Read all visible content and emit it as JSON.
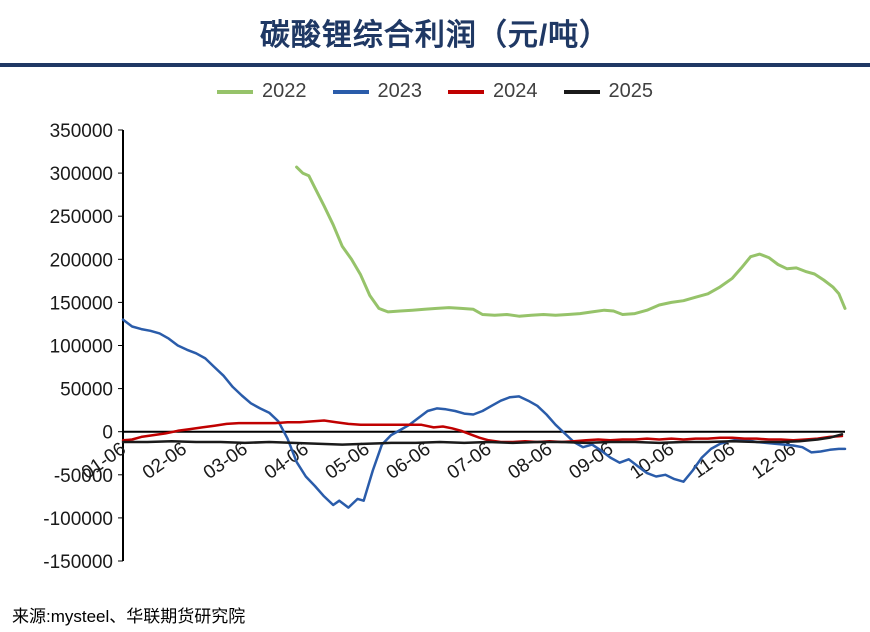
{
  "title": "碳酸锂综合利润（元/吨）",
  "source": "来源:mysteel、华联期货研究院",
  "theme": {
    "title_color": "#1f3864",
    "rule_color": "#1f3864",
    "axis_color": "#000000",
    "tick_label_color": "#1a1a1a"
  },
  "chart_data": {
    "type": "line",
    "title": "碳酸锂综合利润（元/吨）",
    "xlabel": "",
    "ylabel": "",
    "ylim": [
      -150000,
      350000
    ],
    "y_ticks": [
      350000,
      300000,
      250000,
      200000,
      150000,
      100000,
      50000,
      0,
      -50000,
      -100000,
      -150000
    ],
    "x_labels": [
      "01-06",
      "02-06",
      "03-06",
      "04-06",
      "05-06",
      "06-06",
      "07-06",
      "08-06",
      "09-06",
      "10-06",
      "11-06",
      "12-06"
    ],
    "x_unit": "months-since-01-06",
    "x_max": 11.85,
    "grid": false,
    "legend_position": "top",
    "series": [
      {
        "name": "2022",
        "color": "#96c36a",
        "width": 3,
        "points": [
          [
            2.85,
            307000
          ],
          [
            2.95,
            300000
          ],
          [
            3.05,
            297000
          ],
          [
            3.15,
            283000
          ],
          [
            3.3,
            262000
          ],
          [
            3.45,
            240000
          ],
          [
            3.6,
            215000
          ],
          [
            3.75,
            200000
          ],
          [
            3.9,
            182000
          ],
          [
            4.05,
            158000
          ],
          [
            4.2,
            143000
          ],
          [
            4.35,
            139000
          ],
          [
            4.55,
            140000
          ],
          [
            4.75,
            141000
          ],
          [
            4.95,
            142000
          ],
          [
            5.15,
            143000
          ],
          [
            5.35,
            144000
          ],
          [
            5.55,
            143000
          ],
          [
            5.75,
            142000
          ],
          [
            5.9,
            136000
          ],
          [
            6.1,
            135000
          ],
          [
            6.3,
            136000
          ],
          [
            6.5,
            134000
          ],
          [
            6.7,
            135000
          ],
          [
            6.9,
            136000
          ],
          [
            7.1,
            135000
          ],
          [
            7.3,
            136000
          ],
          [
            7.5,
            137000
          ],
          [
            7.7,
            139000
          ],
          [
            7.9,
            141000
          ],
          [
            8.05,
            140000
          ],
          [
            8.2,
            136000
          ],
          [
            8.4,
            137000
          ],
          [
            8.6,
            141000
          ],
          [
            8.8,
            147000
          ],
          [
            9.0,
            150000
          ],
          [
            9.2,
            152000
          ],
          [
            9.4,
            156000
          ],
          [
            9.6,
            160000
          ],
          [
            9.8,
            168000
          ],
          [
            10.0,
            178000
          ],
          [
            10.15,
            190000
          ],
          [
            10.3,
            203000
          ],
          [
            10.45,
            206000
          ],
          [
            10.6,
            202000
          ],
          [
            10.75,
            194000
          ],
          [
            10.9,
            189000
          ],
          [
            11.05,
            190000
          ],
          [
            11.2,
            186000
          ],
          [
            11.35,
            183000
          ],
          [
            11.5,
            176000
          ],
          [
            11.65,
            168000
          ],
          [
            11.75,
            160000
          ],
          [
            11.85,
            143000
          ]
        ]
      },
      {
        "name": "2023",
        "color": "#2a5caa",
        "width": 2.5,
        "points": [
          [
            0,
            130000
          ],
          [
            0.15,
            122000
          ],
          [
            0.3,
            119000
          ],
          [
            0.45,
            117000
          ],
          [
            0.6,
            114000
          ],
          [
            0.75,
            108000
          ],
          [
            0.9,
            100000
          ],
          [
            1.05,
            95000
          ],
          [
            1.2,
            91000
          ],
          [
            1.35,
            85000
          ],
          [
            1.5,
            75000
          ],
          [
            1.65,
            65000
          ],
          [
            1.8,
            52000
          ],
          [
            1.95,
            42000
          ],
          [
            2.1,
            33000
          ],
          [
            2.25,
            27000
          ],
          [
            2.4,
            22000
          ],
          [
            2.55,
            12000
          ],
          [
            2.7,
            -8000
          ],
          [
            2.85,
            -35000
          ],
          [
            3.0,
            -52000
          ],
          [
            3.15,
            -63000
          ],
          [
            3.3,
            -75000
          ],
          [
            3.45,
            -85000
          ],
          [
            3.55,
            -80000
          ],
          [
            3.7,
            -88000
          ],
          [
            3.85,
            -78000
          ],
          [
            3.95,
            -80000
          ],
          [
            4.1,
            -45000
          ],
          [
            4.25,
            -15000
          ],
          [
            4.4,
            -4000
          ],
          [
            4.55,
            2000
          ],
          [
            4.7,
            8000
          ],
          [
            4.85,
            16000
          ],
          [
            5.0,
            24000
          ],
          [
            5.15,
            27000
          ],
          [
            5.3,
            26000
          ],
          [
            5.45,
            24000
          ],
          [
            5.6,
            21000
          ],
          [
            5.75,
            20000
          ],
          [
            5.9,
            24000
          ],
          [
            6.05,
            30000
          ],
          [
            6.2,
            36000
          ],
          [
            6.35,
            40000
          ],
          [
            6.5,
            41000
          ],
          [
            6.65,
            36000
          ],
          [
            6.8,
            30000
          ],
          [
            6.95,
            20000
          ],
          [
            7.1,
            8000
          ],
          [
            7.25,
            -2000
          ],
          [
            7.4,
            -12000
          ],
          [
            7.55,
            -18000
          ],
          [
            7.7,
            -15000
          ],
          [
            7.85,
            -22000
          ],
          [
            8.0,
            -30000
          ],
          [
            8.15,
            -36000
          ],
          [
            8.3,
            -32000
          ],
          [
            8.45,
            -40000
          ],
          [
            8.6,
            -48000
          ],
          [
            8.75,
            -52000
          ],
          [
            8.9,
            -50000
          ],
          [
            9.05,
            -55000
          ],
          [
            9.2,
            -58000
          ],
          [
            9.35,
            -45000
          ],
          [
            9.5,
            -30000
          ],
          [
            9.65,
            -20000
          ],
          [
            9.8,
            -14000
          ],
          [
            9.95,
            -11000
          ],
          [
            10.1,
            -9000
          ],
          [
            10.25,
            -10000
          ],
          [
            10.4,
            -12000
          ],
          [
            10.55,
            -13000
          ],
          [
            10.7,
            -14000
          ],
          [
            10.85,
            -15000
          ],
          [
            11.0,
            -16000
          ],
          [
            11.15,
            -18000
          ],
          [
            11.3,
            -24000
          ],
          [
            11.45,
            -23000
          ],
          [
            11.6,
            -21000
          ],
          [
            11.75,
            -20000
          ],
          [
            11.85,
            -20000
          ]
        ]
      },
      {
        "name": "2024",
        "color": "#c00000",
        "width": 2.5,
        "points": [
          [
            0,
            -10000
          ],
          [
            0.15,
            -9000
          ],
          [
            0.3,
            -6000
          ],
          [
            0.5,
            -4000
          ],
          [
            0.7,
            -2000
          ],
          [
            0.9,
            1000
          ],
          [
            1.1,
            3000
          ],
          [
            1.3,
            5000
          ],
          [
            1.5,
            7000
          ],
          [
            1.7,
            9000
          ],
          [
            1.9,
            10000
          ],
          [
            2.1,
            10000
          ],
          [
            2.3,
            10000
          ],
          [
            2.5,
            10000
          ],
          [
            2.7,
            11000
          ],
          [
            2.9,
            11000
          ],
          [
            3.1,
            12000
          ],
          [
            3.3,
            13000
          ],
          [
            3.5,
            11000
          ],
          [
            3.7,
            9000
          ],
          [
            3.9,
            8000
          ],
          [
            4.1,
            8000
          ],
          [
            4.3,
            8000
          ],
          [
            4.5,
            8000
          ],
          [
            4.7,
            8000
          ],
          [
            4.9,
            8000
          ],
          [
            5.1,
            5000
          ],
          [
            5.25,
            6000
          ],
          [
            5.4,
            4000
          ],
          [
            5.55,
            1000
          ],
          [
            5.7,
            -3000
          ],
          [
            5.85,
            -7000
          ],
          [
            6.0,
            -10000
          ],
          [
            6.2,
            -12000
          ],
          [
            6.4,
            -12000
          ],
          [
            6.6,
            -11000
          ],
          [
            6.8,
            -12000
          ],
          [
            7.0,
            -11000
          ],
          [
            7.2,
            -12000
          ],
          [
            7.4,
            -11000
          ],
          [
            7.6,
            -10000
          ],
          [
            7.8,
            -9000
          ],
          [
            8.0,
            -10000
          ],
          [
            8.2,
            -9000
          ],
          [
            8.4,
            -9000
          ],
          [
            8.6,
            -8000
          ],
          [
            8.8,
            -9000
          ],
          [
            9.0,
            -8000
          ],
          [
            9.2,
            -9000
          ],
          [
            9.4,
            -8000
          ],
          [
            9.6,
            -8000
          ],
          [
            9.8,
            -7000
          ],
          [
            10.0,
            -7000
          ],
          [
            10.2,
            -8000
          ],
          [
            10.4,
            -8000
          ],
          [
            10.6,
            -9000
          ],
          [
            10.8,
            -9000
          ],
          [
            11.0,
            -10000
          ],
          [
            11.2,
            -9000
          ],
          [
            11.4,
            -8000
          ],
          [
            11.6,
            -6000
          ],
          [
            11.8,
            -5000
          ]
        ]
      },
      {
        "name": "2025",
        "color": "#1a1a1a",
        "width": 2.5,
        "points": [
          [
            0,
            -12000
          ],
          [
            0.4,
            -12000
          ],
          [
            0.8,
            -11000
          ],
          [
            1.2,
            -12000
          ],
          [
            1.6,
            -12000
          ],
          [
            2.0,
            -13000
          ],
          [
            2.4,
            -12000
          ],
          [
            2.8,
            -13000
          ],
          [
            3.2,
            -14000
          ],
          [
            3.6,
            -15000
          ],
          [
            4.0,
            -14000
          ],
          [
            4.4,
            -13000
          ],
          [
            4.8,
            -13000
          ],
          [
            5.2,
            -12000
          ],
          [
            5.6,
            -13000
          ],
          [
            6.0,
            -12000
          ],
          [
            6.4,
            -13000
          ],
          [
            6.8,
            -12000
          ],
          [
            7.2,
            -12000
          ],
          [
            7.6,
            -13000
          ],
          [
            8.0,
            -12000
          ],
          [
            8.4,
            -12000
          ],
          [
            8.8,
            -13000
          ],
          [
            9.2,
            -12000
          ],
          [
            9.6,
            -12000
          ],
          [
            10.0,
            -11000
          ],
          [
            10.4,
            -12000
          ],
          [
            10.8,
            -12000
          ],
          [
            11.1,
            -11000
          ],
          [
            11.4,
            -9000
          ],
          [
            11.6,
            -7000
          ],
          [
            11.8,
            -3000
          ]
        ]
      }
    ]
  }
}
